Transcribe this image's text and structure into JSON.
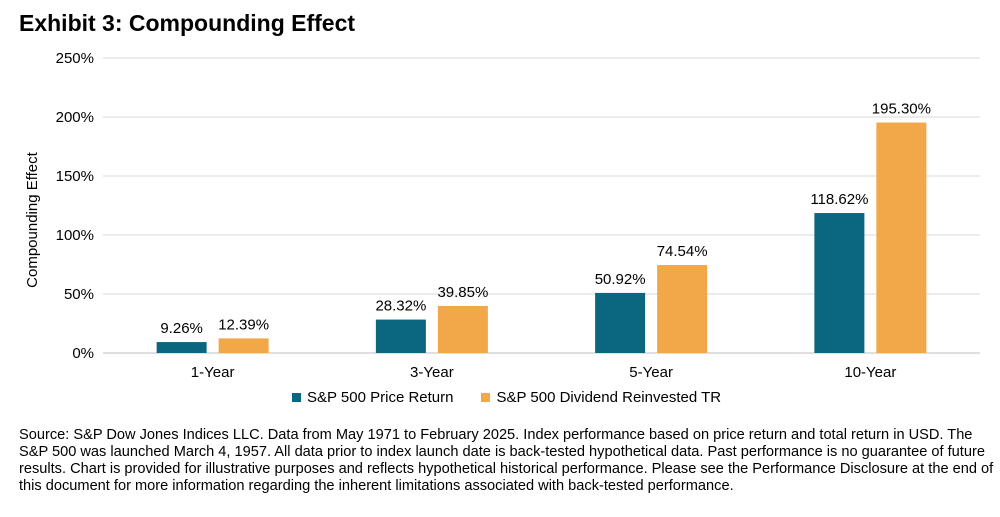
{
  "title": "Exhibit 3: Compounding Effect",
  "colors": {
    "series1": "#0b6680",
    "series2": "#f2a848",
    "grid": "#d9d9d9",
    "axis": "#bfbfbf"
  },
  "chart_data": {
    "type": "bar",
    "title": "Exhibit 3: Compounding Effect",
    "xlabel": "",
    "ylabel": "Compounding Effect",
    "ylim": [
      0,
      250
    ],
    "yticks": [
      0,
      50,
      100,
      150,
      200,
      250
    ],
    "ytick_labels": [
      "0%",
      "50%",
      "100%",
      "150%",
      "200%",
      "250%"
    ],
    "grid": true,
    "legend_position": "bottom",
    "categories": [
      "1-Year",
      "3-Year",
      "5-Year",
      "10-Year"
    ],
    "series": [
      {
        "name": "S&P 500 Price Return",
        "values": [
          9.26,
          28.32,
          50.92,
          118.62
        ],
        "labels": [
          "9.26%",
          "28.32%",
          "50.92%",
          "118.62%"
        ]
      },
      {
        "name": "S&P 500 Dividend Reinvested TR",
        "values": [
          12.39,
          39.85,
          74.54,
          195.3
        ],
        "labels": [
          "12.39%",
          "39.85%",
          "74.54%",
          "195.30%"
        ]
      }
    ]
  },
  "source_note": "Source: S&P Dow Jones Indices LLC.  Data from May 1971 to February 2025.  Index performance based on price return and total return in USD.  The S&P 500 was launched March 4, 1957.  All data prior to index launch date is back-tested hypothetical data.  Past performance is no guarantee of future results.  Chart is provided for illustrative purposes and reflects hypothetical historical performance.  Please see the Performance Disclosure at the end of this document for more information regarding the inherent limitations associated with back-tested performance."
}
